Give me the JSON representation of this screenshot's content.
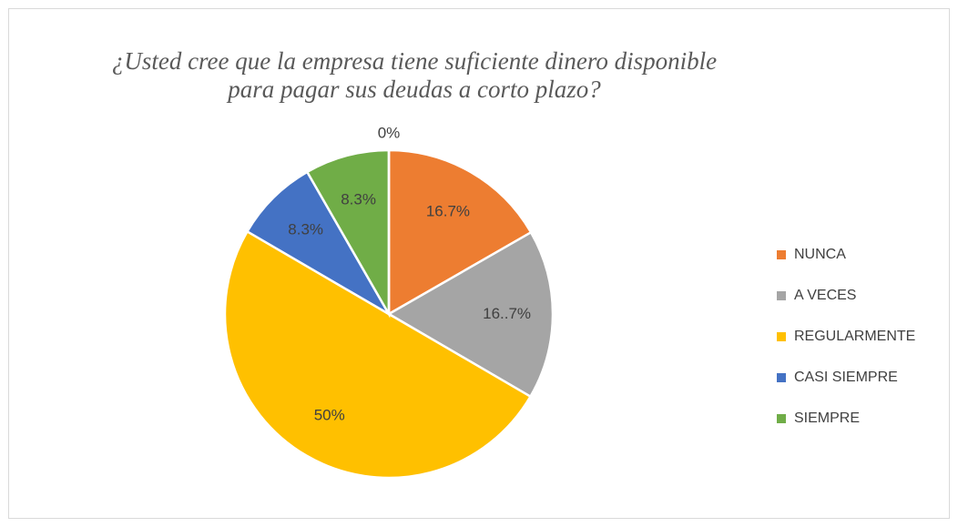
{
  "chart_data": {
    "type": "pie",
    "title": [
      "¿Usted cree que la empresa tiene suficiente dinero disponible",
      "para pagar sus deudas a corto plazo?"
    ],
    "categories": [
      "NUNCA",
      "A VECES",
      "REGULARMENTE",
      "CASI SIEMPRE",
      "SIEMPRE",
      null
    ],
    "values": [
      16.7,
      16.7,
      50,
      8.3,
      8.3,
      0
    ],
    "value_labels": [
      "16.7%",
      "16..7%",
      "50%",
      "8.3%",
      "8.3%",
      "0%"
    ],
    "colors": [
      "#ED7D31",
      "#A5A5A5",
      "#FFC000",
      "#4472C4",
      "#70AD47",
      "#5B9BD5"
    ],
    "legend": "right"
  }
}
